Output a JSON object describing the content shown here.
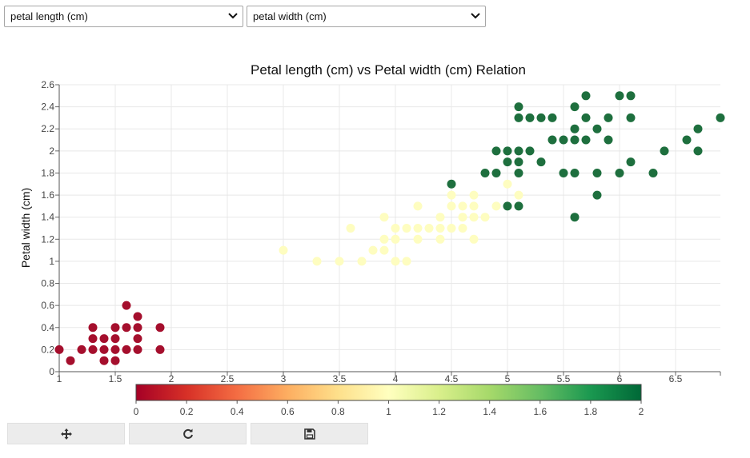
{
  "controls": {
    "x_select": "petal length (cm)",
    "y_select": "petal width (cm)"
  },
  "toolbar": {
    "pan_icon": "move-icon",
    "reset_icon": "refresh-icon",
    "save_icon": "floppy-disk-icon"
  },
  "chart_data": {
    "type": "scatter",
    "title": "Petal length (cm) vs Petal width (cm) Relation",
    "xlabel": "",
    "ylabel": "Petal width (cm)",
    "xlim": [
      1,
      6.9
    ],
    "ylim": [
      0,
      2.6
    ],
    "xticks": [
      1,
      1.5,
      2,
      2.5,
      3,
      3.5,
      4,
      4.5,
      5,
      5.5,
      6,
      6.5
    ],
    "yticks": [
      0,
      0.2,
      0.4,
      0.6,
      0.8,
      1,
      1.2,
      1.4,
      1.6,
      1.8,
      2,
      2.2,
      2.4,
      2.6
    ],
    "grid": true,
    "color_by": "class value",
    "colorbar": {
      "min": 0,
      "max": 2,
      "ticks": [
        0,
        0.2,
        0.4,
        0.6,
        0.8,
        1,
        1.2,
        1.4,
        1.6,
        1.8,
        2
      ],
      "colors": [
        "#a50026",
        "#d73027",
        "#f46d43",
        "#fdae61",
        "#fee08b",
        "#ffffbf",
        "#d9ef8b",
        "#a6d96a",
        "#66bd63",
        "#1a9850",
        "#006837"
      ]
    },
    "point_colors": {
      "0": "#a50f2d",
      "1": "#fefdc0",
      "2": "#1e6f3e"
    },
    "points": [
      [
        1,
        0.2,
        0
      ],
      [
        1.1,
        0.1,
        0
      ],
      [
        1.2,
        0.2,
        0
      ],
      [
        1.3,
        0.2,
        0
      ],
      [
        1.3,
        0.3,
        0
      ],
      [
        1.3,
        0.4,
        0
      ],
      [
        1.4,
        0.1,
        0
      ],
      [
        1.4,
        0.2,
        0
      ],
      [
        1.4,
        0.3,
        0
      ],
      [
        1.5,
        0.1,
        0
      ],
      [
        1.5,
        0.2,
        0
      ],
      [
        1.5,
        0.3,
        0
      ],
      [
        1.5,
        0.4,
        0
      ],
      [
        1.6,
        0.2,
        0
      ],
      [
        1.6,
        0.4,
        0
      ],
      [
        1.6,
        0.6,
        0
      ],
      [
        1.7,
        0.2,
        0
      ],
      [
        1.7,
        0.3,
        0
      ],
      [
        1.7,
        0.4,
        0
      ],
      [
        1.7,
        0.5,
        0
      ],
      [
        1.9,
        0.2,
        0
      ],
      [
        1.9,
        0.4,
        0
      ],
      [
        3,
        1.1,
        1
      ],
      [
        3.3,
        1,
        1
      ],
      [
        3.5,
        1,
        1
      ],
      [
        3.6,
        1.3,
        1
      ],
      [
        3.7,
        1,
        1
      ],
      [
        3.8,
        1.1,
        1
      ],
      [
        3.9,
        1.1,
        1
      ],
      [
        3.9,
        1.2,
        1
      ],
      [
        3.9,
        1.4,
        1
      ],
      [
        4,
        1,
        1
      ],
      [
        4,
        1.2,
        1
      ],
      [
        4,
        1.3,
        1
      ],
      [
        4.1,
        1,
        1
      ],
      [
        4.1,
        1.3,
        1
      ],
      [
        4.2,
        1.2,
        1
      ],
      [
        4.2,
        1.3,
        1
      ],
      [
        4.2,
        1.5,
        1
      ],
      [
        4.3,
        1.3,
        1
      ],
      [
        4.4,
        1.2,
        1
      ],
      [
        4.4,
        1.3,
        1
      ],
      [
        4.4,
        1.4,
        1
      ],
      [
        4.5,
        1.3,
        1
      ],
      [
        4.5,
        1.5,
        1
      ],
      [
        4.5,
        1.6,
        1
      ],
      [
        4.6,
        1.3,
        1
      ],
      [
        4.6,
        1.4,
        1
      ],
      [
        4.6,
        1.5,
        1
      ],
      [
        4.7,
        1.2,
        1
      ],
      [
        4.7,
        1.4,
        1
      ],
      [
        4.7,
        1.5,
        1
      ],
      [
        4.7,
        1.6,
        1
      ],
      [
        4.8,
        1.4,
        1
      ],
      [
        4.9,
        1.5,
        1
      ],
      [
        5,
        1.7,
        1
      ],
      [
        5.1,
        1.6,
        1
      ],
      [
        4.5,
        1.7,
        2
      ],
      [
        4.8,
        1.8,
        2
      ],
      [
        4.9,
        1.8,
        2
      ],
      [
        4.9,
        2,
        2
      ],
      [
        5,
        1.5,
        2
      ],
      [
        5,
        1.9,
        2
      ],
      [
        5,
        2,
        2
      ],
      [
        5.1,
        1.5,
        2
      ],
      [
        5.1,
        1.8,
        2
      ],
      [
        5.1,
        1.9,
        2
      ],
      [
        5.1,
        2,
        2
      ],
      [
        5.1,
        2.3,
        2
      ],
      [
        5.1,
        2.4,
        2
      ],
      [
        5.2,
        2,
        2
      ],
      [
        5.2,
        2.3,
        2
      ],
      [
        5.3,
        1.9,
        2
      ],
      [
        5.3,
        2.3,
        2
      ],
      [
        5.4,
        2.1,
        2
      ],
      [
        5.4,
        2.3,
        2
      ],
      [
        5.5,
        1.8,
        2
      ],
      [
        5.5,
        2.1,
        2
      ],
      [
        5.6,
        1.4,
        2
      ],
      [
        5.6,
        1.8,
        2
      ],
      [
        5.6,
        2.1,
        2
      ],
      [
        5.6,
        2.2,
        2
      ],
      [
        5.6,
        2.4,
        2
      ],
      [
        5.7,
        2.1,
        2
      ],
      [
        5.7,
        2.3,
        2
      ],
      [
        5.7,
        2.5,
        2
      ],
      [
        5.8,
        1.6,
        2
      ],
      [
        5.8,
        1.8,
        2
      ],
      [
        5.8,
        2.2,
        2
      ],
      [
        5.9,
        2.1,
        2
      ],
      [
        5.9,
        2.3,
        2
      ],
      [
        6,
        1.8,
        2
      ],
      [
        6,
        2.5,
        2
      ],
      [
        6.1,
        1.9,
        2
      ],
      [
        6.1,
        2.3,
        2
      ],
      [
        6.1,
        2.5,
        2
      ],
      [
        6.3,
        1.8,
        2
      ],
      [
        6.4,
        2,
        2
      ],
      [
        6.6,
        2.1,
        2
      ],
      [
        6.7,
        2,
        2
      ],
      [
        6.7,
        2.2,
        2
      ],
      [
        6.9,
        2.3,
        2
      ]
    ]
  }
}
